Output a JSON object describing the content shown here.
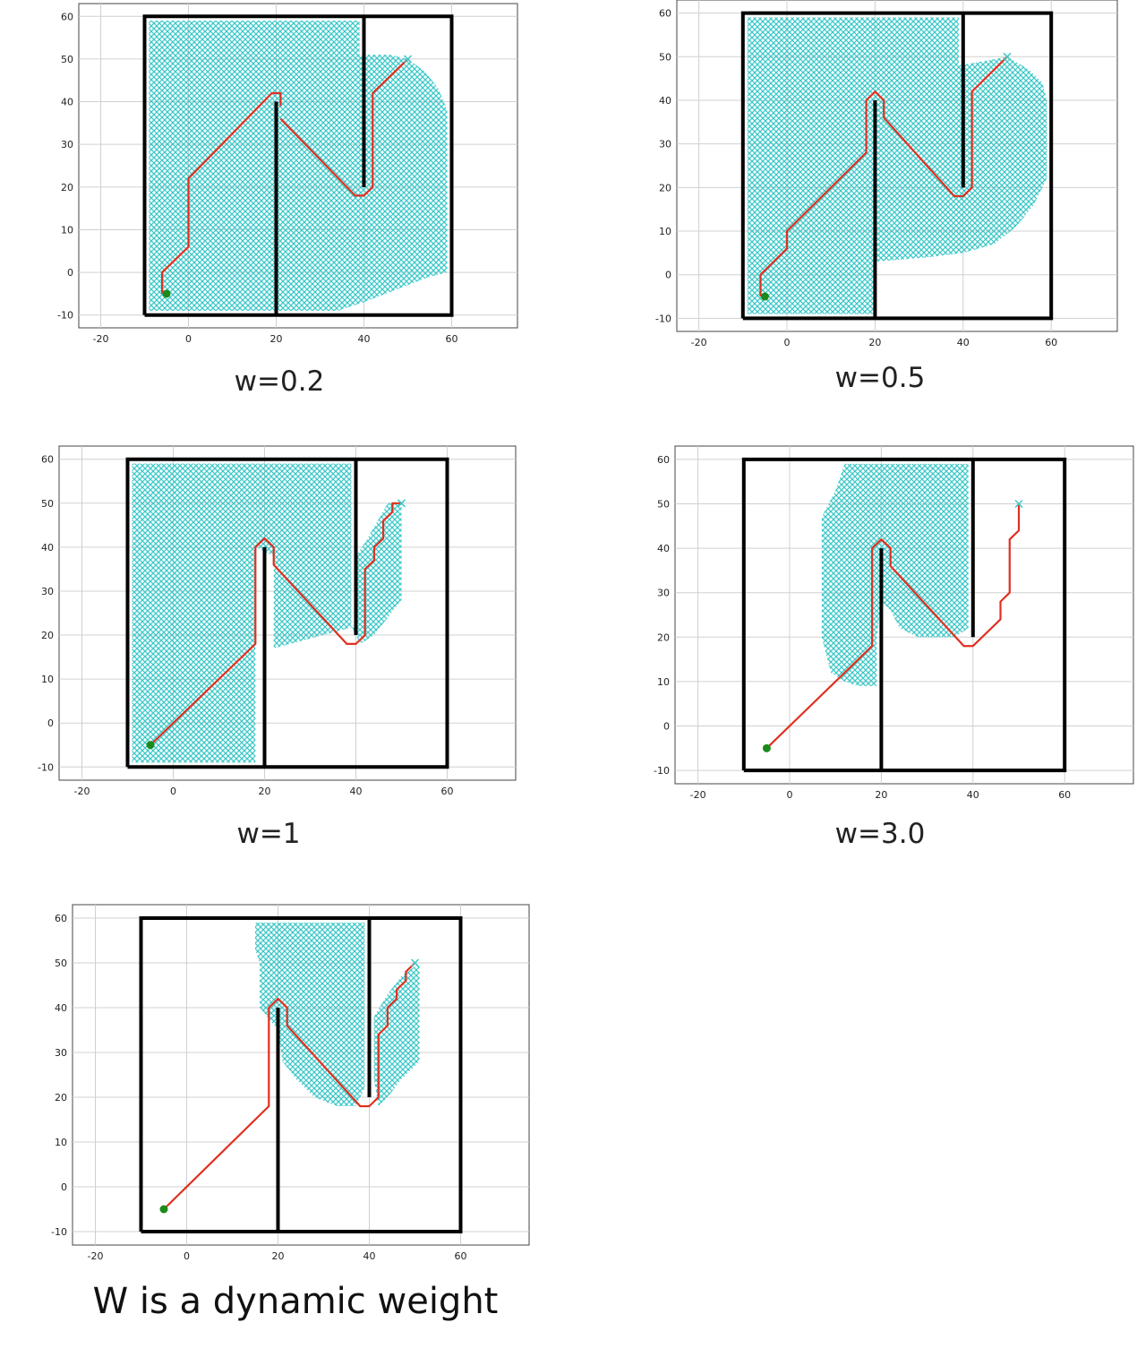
{
  "colors": {
    "wall": "#000000",
    "explored": "#3cc8c8",
    "path": "#e03020",
    "start": "#1a8a1a",
    "grid": "#d0d0d0"
  },
  "chart_data": [
    {
      "type": "scatter",
      "caption": "w=0.2",
      "xlim": [
        -25,
        75
      ],
      "ylim": [
        -13,
        63
      ],
      "xticks": [
        -20,
        0,
        20,
        40,
        60
      ],
      "yticks": [
        -10,
        0,
        10,
        20,
        30,
        40,
        50,
        60
      ],
      "grid": true,
      "explored_region": [
        [
          -9,
          -9
        ],
        [
          -9,
          59
        ],
        [
          39,
          59
        ],
        [
          39,
          51
        ],
        [
          46,
          51
        ],
        [
          50,
          50
        ],
        [
          54,
          47
        ],
        [
          57,
          43
        ],
        [
          59,
          38
        ],
        [
          59,
          0
        ],
        [
          55,
          -1
        ],
        [
          50,
          -3
        ],
        [
          45,
          -5
        ],
        [
          40,
          -7
        ],
        [
          34,
          -9
        ]
      ],
      "path": [
        [
          -6,
          -5
        ],
        [
          -6,
          0
        ],
        [
          -3,
          3
        ],
        [
          0,
          6
        ],
        [
          0,
          22
        ],
        [
          19,
          42
        ],
        [
          21,
          42
        ],
        [
          21,
          39
        ]
      ],
      "path_segment2": [
        [
          21,
          36
        ],
        [
          38,
          18
        ],
        [
          40,
          18
        ],
        [
          42,
          20
        ],
        [
          42,
          42
        ],
        [
          50,
          50
        ]
      ],
      "start": [
        -5,
        -5
      ],
      "goal": [
        50,
        50
      ]
    },
    {
      "type": "scatter",
      "caption": "w=0.5",
      "xlim": [
        -25,
        75
      ],
      "ylim": [
        -13,
        63
      ],
      "xticks": [
        -20,
        0,
        20,
        40,
        60
      ],
      "yticks": [
        -10,
        0,
        10,
        20,
        30,
        40,
        50,
        60
      ],
      "grid": true,
      "explored_region": [
        [
          -9,
          -9
        ],
        [
          -9,
          59
        ],
        [
          39,
          59
        ],
        [
          39,
          48
        ],
        [
          45,
          49
        ],
        [
          50,
          50
        ],
        [
          55,
          47
        ],
        [
          58,
          44
        ],
        [
          59,
          40
        ],
        [
          59,
          22
        ],
        [
          56,
          16
        ],
        [
          52,
          11
        ],
        [
          47,
          7
        ],
        [
          40,
          5
        ],
        [
          32,
          4
        ],
        [
          20,
          3
        ],
        [
          20,
          -9
        ]
      ],
      "path": [
        [
          -6,
          -5
        ],
        [
          -6,
          0
        ],
        [
          -3,
          3
        ],
        [
          0,
          6
        ],
        [
          0,
          10
        ],
        [
          18,
          28
        ],
        [
          18,
          40
        ],
        [
          20,
          42
        ],
        [
          22,
          40
        ],
        [
          22,
          36
        ],
        [
          38,
          18
        ],
        [
          40,
          18
        ],
        [
          42,
          20
        ],
        [
          42,
          42
        ],
        [
          50,
          50
        ]
      ],
      "start": [
        -5,
        -5
      ],
      "goal": [
        50,
        50
      ]
    },
    {
      "type": "scatter",
      "caption": "w=1",
      "xlim": [
        -25,
        75
      ],
      "ylim": [
        -13,
        63
      ],
      "xticks": [
        -20,
        0,
        20,
        40,
        60
      ],
      "yticks": [
        -10,
        0,
        10,
        20,
        30,
        40,
        50,
        60
      ],
      "grid": true,
      "explored_region": [
        [
          -9,
          -9
        ],
        [
          -9,
          59
        ],
        [
          39,
          59
        ],
        [
          39,
          22
        ],
        [
          41,
          18
        ],
        [
          44,
          20
        ],
        [
          47,
          24
        ],
        [
          50,
          28
        ],
        [
          50,
          50
        ],
        [
          47,
          50
        ],
        [
          42,
          41
        ],
        [
          40,
          38
        ],
        [
          40,
          22
        ],
        [
          22,
          17
        ],
        [
          22,
          38
        ],
        [
          18,
          40
        ],
        [
          18,
          -9
        ]
      ],
      "path": [
        [
          -5,
          -5
        ],
        [
          18,
          18
        ],
        [
          18,
          40
        ],
        [
          20,
          42
        ],
        [
          22,
          40
        ],
        [
          22,
          36
        ],
        [
          38,
          18
        ],
        [
          40,
          18
        ],
        [
          42,
          20
        ],
        [
          42,
          35
        ],
        [
          44,
          37
        ],
        [
          44,
          40
        ],
        [
          46,
          42
        ],
        [
          46,
          46
        ],
        [
          48,
          48
        ],
        [
          48,
          50
        ],
        [
          50,
          50
        ]
      ],
      "start": [
        -5,
        -5
      ],
      "goal": [
        50,
        50
      ]
    },
    {
      "type": "scatter",
      "caption": "w=3.0",
      "xlim": [
        -25,
        75
      ],
      "ylim": [
        -13,
        63
      ],
      "xticks": [
        -20,
        0,
        20,
        40,
        60
      ],
      "yticks": [
        -10,
        0,
        10,
        20,
        30,
        40,
        50,
        60
      ],
      "grid": true,
      "explored_region": [
        [
          12,
          59
        ],
        [
          39,
          59
        ],
        [
          39,
          22
        ],
        [
          36,
          20
        ],
        [
          28,
          20
        ],
        [
          24,
          22
        ],
        [
          22,
          26
        ],
        [
          20,
          28
        ],
        [
          19,
          20
        ],
        [
          19,
          9
        ],
        [
          15,
          9
        ],
        [
          12,
          10
        ],
        [
          9,
          12
        ],
        [
          7,
          20
        ],
        [
          7,
          47
        ],
        [
          10,
          53
        ]
      ],
      "path": [
        [
          -5,
          -5
        ],
        [
          18,
          18
        ],
        [
          18,
          40
        ],
        [
          20,
          42
        ],
        [
          22,
          40
        ],
        [
          22,
          36
        ],
        [
          38,
          18
        ],
        [
          40,
          18
        ],
        [
          44,
          22
        ],
        [
          46,
          24
        ],
        [
          46,
          28
        ],
        [
          48,
          30
        ],
        [
          48,
          42
        ],
        [
          50,
          44
        ],
        [
          50,
          50
        ]
      ],
      "start": [
        -5,
        -5
      ],
      "goal": [
        50,
        50
      ]
    },
    {
      "type": "scatter",
      "caption": "W is a dynamic weight",
      "xlim": [
        -25,
        75
      ],
      "ylim": [
        -13,
        63
      ],
      "xticks": [
        -20,
        0,
        20,
        40,
        60
      ],
      "yticks": [
        -10,
        0,
        10,
        20,
        30,
        40,
        50,
        60
      ],
      "grid": true,
      "explored_region": [
        [
          15,
          59
        ],
        [
          39,
          59
        ],
        [
          39,
          22
        ],
        [
          37,
          18
        ],
        [
          33,
          18
        ],
        [
          28,
          20
        ],
        [
          24,
          24
        ],
        [
          21,
          28
        ],
        [
          20,
          35
        ],
        [
          16,
          40
        ],
        [
          16,
          50
        ],
        [
          15,
          53
        ]
      ],
      "explored_region2": [
        [
          41,
          24
        ],
        [
          42,
          18
        ],
        [
          44,
          20
        ],
        [
          47,
          24
        ],
        [
          51,
          28
        ],
        [
          51,
          50
        ],
        [
          47,
          47
        ],
        [
          44,
          43
        ],
        [
          41,
          38
        ]
      ],
      "path": [
        [
          -5,
          -5
        ],
        [
          18,
          18
        ],
        [
          18,
          40
        ],
        [
          20,
          42
        ],
        [
          22,
          40
        ],
        [
          22,
          36
        ],
        [
          38,
          18
        ],
        [
          40,
          18
        ],
        [
          42,
          20
        ],
        [
          42,
          34
        ],
        [
          44,
          36
        ],
        [
          44,
          40
        ],
        [
          46,
          42
        ],
        [
          46,
          44
        ],
        [
          48,
          46
        ],
        [
          48,
          48
        ],
        [
          50,
          50
        ]
      ],
      "start": [
        -5,
        -5
      ],
      "goal": [
        50,
        50
      ]
    }
  ]
}
